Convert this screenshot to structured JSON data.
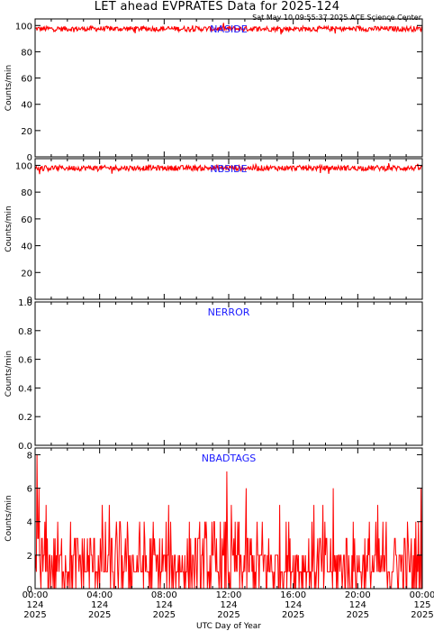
{
  "header": {
    "title": "LET ahead EVPRATES Data for 2025-124",
    "timestamp": "Sat May 10 09:55:37 2025 ACE Science Center"
  },
  "colors": {
    "series": "#ff0000",
    "panel_label": "#1a1aff",
    "axes": "#000000"
  },
  "xaxis": {
    "label": "UTC Day of Year",
    "range_hours": [
      0,
      24
    ],
    "ticks": [
      {
        "time": "00:00",
        "doy": "124",
        "year": "2025"
      },
      {
        "time": "04:00",
        "doy": "124",
        "year": "2025"
      },
      {
        "time": "08:00",
        "doy": "124",
        "year": "2025"
      },
      {
        "time": "12:00",
        "doy": "124",
        "year": "2025"
      },
      {
        "time": "16:00",
        "doy": "124",
        "year": "2025"
      },
      {
        "time": "20:00",
        "doy": "124",
        "year": "2025"
      },
      {
        "time": "00:00",
        "doy": "125",
        "year": "2025"
      }
    ]
  },
  "chart_data": [
    {
      "type": "line",
      "panel_label": "NASIDE",
      "ylabel": "Counts/min",
      "ylim": [
        0,
        105
      ],
      "yticks": [
        0,
        20,
        40,
        60,
        80,
        100
      ],
      "series": [
        {
          "values_summary": "noisy ~96-99 counts/min all day",
          "range": [
            93,
            102
          ],
          "mean": 97.5
        }
      ]
    },
    {
      "type": "line",
      "panel_label": "NBSIDE",
      "ylabel": "Counts/min",
      "ylim": [
        0,
        105
      ],
      "yticks": [
        0,
        20,
        40,
        60,
        80,
        100
      ],
      "series": [
        {
          "values_summary": "noisy ~97-100 counts/min all day",
          "range": [
            92,
            102
          ],
          "mean": 98
        }
      ]
    },
    {
      "type": "line",
      "panel_label": "NERROR",
      "ylabel": "Counts/min",
      "ylim": [
        0,
        1.0
      ],
      "yticks": [
        "0.0",
        "0.2",
        "0.4",
        "0.6",
        "0.8",
        "1.0"
      ],
      "series": [
        {
          "values_summary": "zero throughout",
          "range": [
            0,
            0
          ],
          "mean": 0
        }
      ]
    },
    {
      "type": "line",
      "panel_label": "NBADTAGS",
      "ylabel": "Counts/min",
      "ylim": [
        0,
        8.4
      ],
      "yticks": [
        0,
        2,
        4,
        6,
        8
      ],
      "series": [
        {
          "values_summary": "integer counts mostly 0-3, spikes to 6-7, max 8 near start",
          "range": [
            0,
            8
          ],
          "mean": 1.5,
          "max": 8
        }
      ]
    }
  ]
}
